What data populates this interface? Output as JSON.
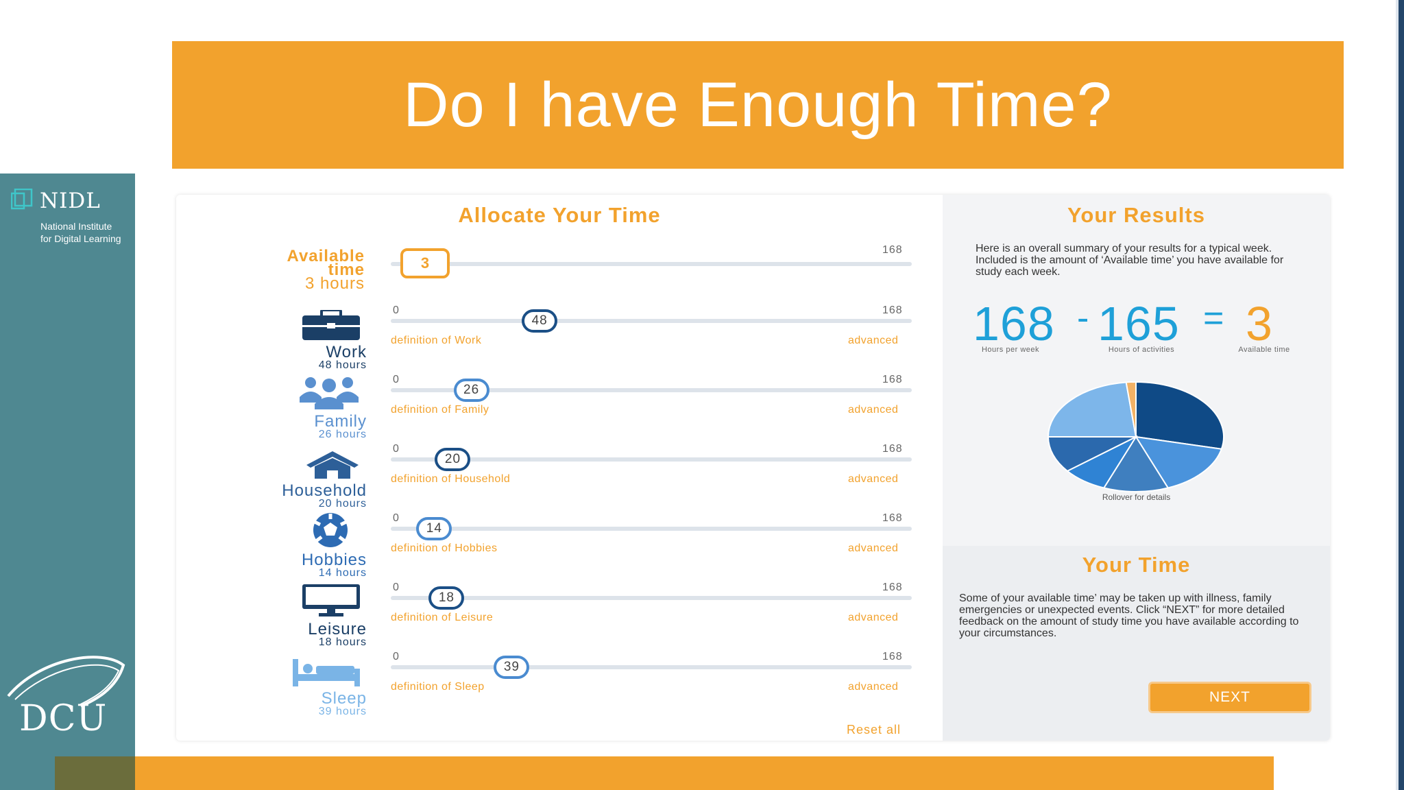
{
  "slide": {
    "title": "Do I have Enough Time?"
  },
  "branding": {
    "nidl_name": "NIDL",
    "nidl_sub_line1": "National Institute",
    "nidl_sub_line2": "for Digital Learning",
    "dcu_name": "DCU"
  },
  "allocate": {
    "title": "Allocate Your Time",
    "available": {
      "label_line1": "Available",
      "label_line2": "time",
      "hours_label": "3 hours",
      "value": "3",
      "max": "168"
    },
    "rows": [
      {
        "name": "Work",
        "hours": "48 hours",
        "value": "48",
        "min": "0",
        "max": "168",
        "definition": "definition of Work",
        "advanced": "advanced",
        "icon": "briefcase-icon",
        "label_color": "#1b3f66"
      },
      {
        "name": "Family",
        "hours": "26 hours",
        "value": "26",
        "min": "0",
        "max": "168",
        "definition": "definition of Family",
        "advanced": "advanced",
        "icon": "family-icon",
        "label_color": "#5a90cf"
      },
      {
        "name": "Household",
        "hours": "20 hours",
        "value": "20",
        "min": "0",
        "max": "168",
        "definition": "definition of Household",
        "advanced": "advanced",
        "icon": "house-icon",
        "label_color": "#2d5f98"
      },
      {
        "name": "Hobbies",
        "hours": "14 hours",
        "value": "14",
        "min": "0",
        "max": "168",
        "definition": "definition of Hobbies",
        "advanced": "advanced",
        "icon": "soccer-ball-icon",
        "label_color": "#2d6bb3"
      },
      {
        "name": "Leisure",
        "hours": "18 hours",
        "value": "18",
        "min": "0",
        "max": "168",
        "definition": "definition of Leisure",
        "advanced": "advanced",
        "icon": "monitor-icon",
        "label_color": "#1b3f66"
      },
      {
        "name": "Sleep",
        "hours": "39 hours",
        "value": "39",
        "min": "0",
        "max": "168",
        "definition": "definition of Sleep",
        "advanced": "advanced",
        "icon": "bed-icon",
        "label_color": "#7ab4e6"
      }
    ],
    "reset_label": "Reset all"
  },
  "results": {
    "title": "Your Results",
    "description": "Here is an overall summary of your results for a typical week. Included is the amount of ‘Available time’ you have available for study each week.",
    "hours_per_week": "168",
    "hours_per_week_label": "Hours per week",
    "minus": "-",
    "hours_of_activities": "165",
    "hours_of_activities_label": "Hours of activities",
    "equals": "=",
    "available_time": "3",
    "available_time_label": "Available time",
    "pie_caption": "Rollover for details",
    "pie_slices": [
      {
        "name": "Work",
        "value": 48,
        "color": "#0f4a86"
      },
      {
        "name": "Family",
        "value": 26,
        "color": "#4a93dc"
      },
      {
        "name": "Household",
        "value": 20,
        "color": "#3f7fbf"
      },
      {
        "name": "Hobbies",
        "value": 14,
        "color": "#2f83d4"
      },
      {
        "name": "Leisure",
        "value": 18,
        "color": "#2b69ad"
      },
      {
        "name": "Sleep",
        "value": 39,
        "color": "#7db6ea"
      },
      {
        "name": "Available time",
        "value": 3,
        "color": "#f2b266"
      }
    ]
  },
  "your_time": {
    "title": "Your Time",
    "description": "Some of your available time’ may be taken up with illness, family emergencies or unexpected events. Click “NEXT” for more detailed feedback on the amount of study time you have available according to your circumstances.",
    "next_label": "NEXT"
  }
}
